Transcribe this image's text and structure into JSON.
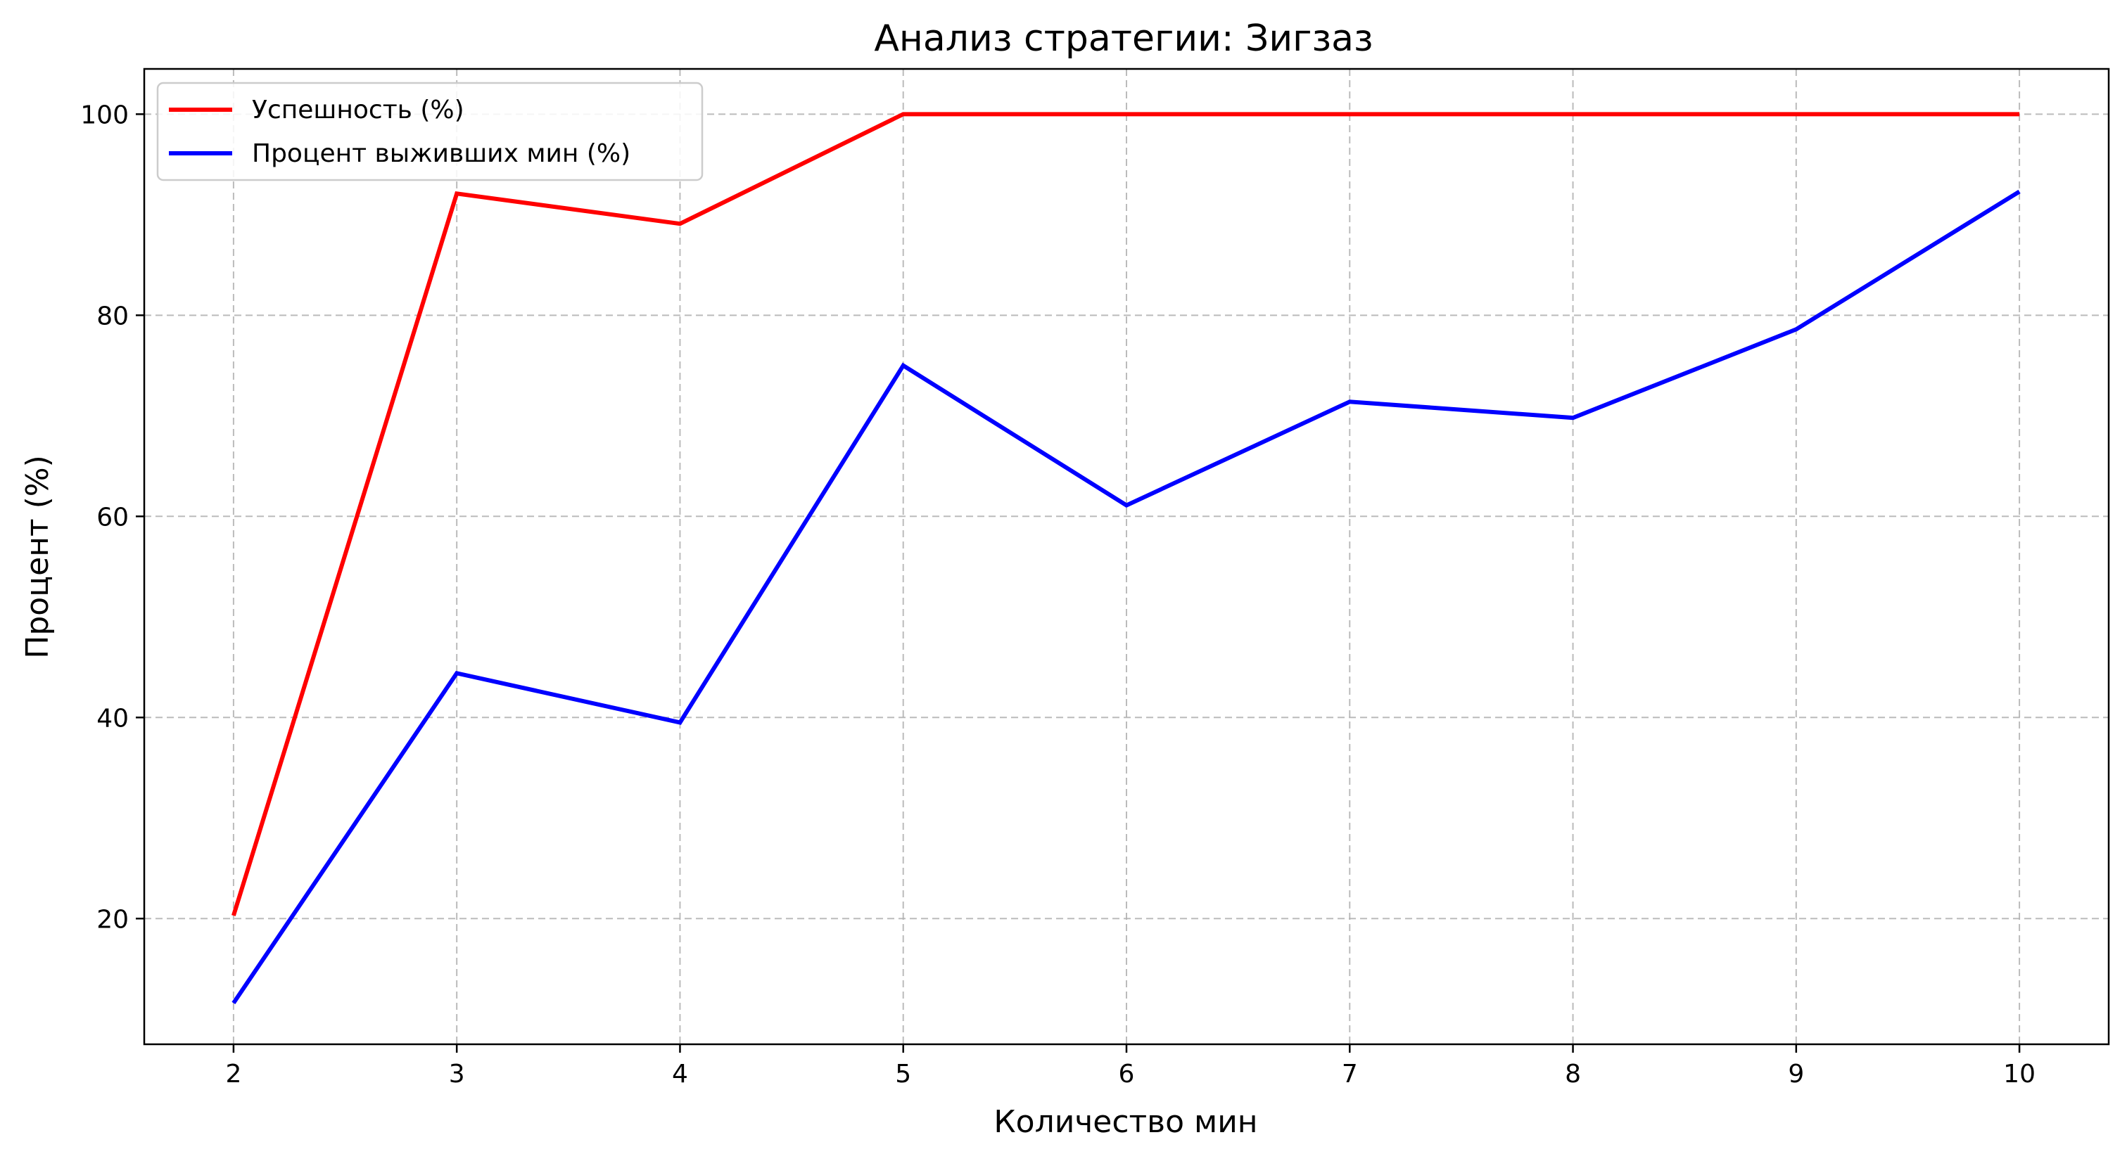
{
  "chart_data": {
    "type": "line",
    "title": "Анализ стратегии: Зигзаз",
    "xlabel": "Количество мин",
    "ylabel": "Процент (%)",
    "x": [
      2,
      3,
      4,
      5,
      6,
      7,
      8,
      9,
      10
    ],
    "xticks": [
      "2",
      "3",
      "4",
      "5",
      "6",
      "7",
      "8",
      "9",
      "10"
    ],
    "yticks": [
      "20",
      "40",
      "60",
      "80",
      "100"
    ],
    "xlim": [
      1.6,
      10.4
    ],
    "ylim": [
      7.5,
      104.5
    ],
    "grid": true,
    "legend_position": "upper-left",
    "series": [
      {
        "name": "Успешность (%)",
        "color": "#ff0000",
        "values": [
          20.3,
          92.1,
          89.1,
          100,
          100,
          100,
          100,
          100,
          100
        ]
      },
      {
        "name": "Процент выживших мин (%)",
        "color": "#0000ff",
        "values": [
          11.6,
          44.4,
          39.5,
          75.0,
          61.1,
          71.4,
          69.8,
          78.6,
          92.3
        ]
      }
    ]
  }
}
